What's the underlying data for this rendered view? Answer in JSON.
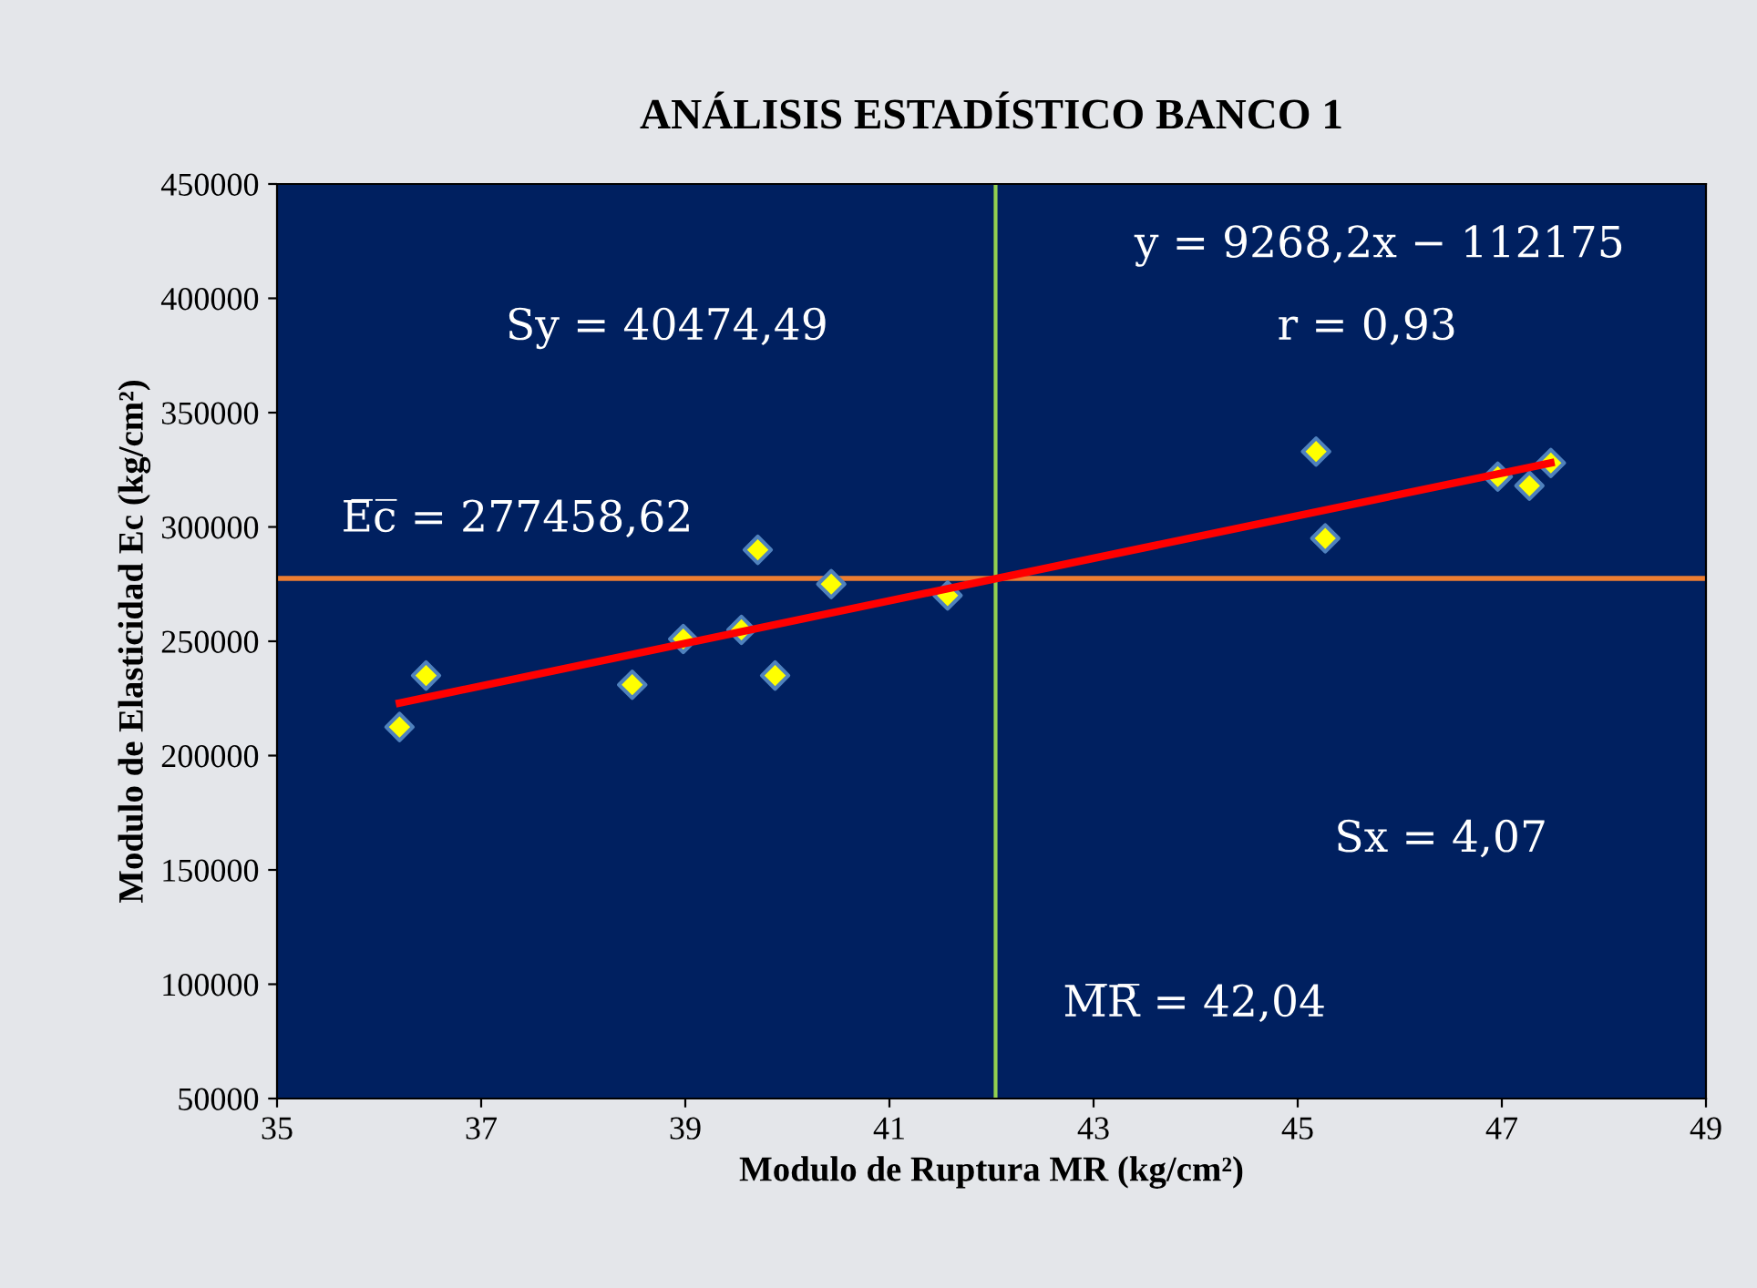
{
  "chart_data": {
    "type": "scatter",
    "title": "ANÁLISIS ESTADÍSTICO BANCO 1",
    "xlabel": "Modulo de Ruptura MR (kg/cm²)",
    "ylabel": "Modulo de Elasticidad Ec (kg/cm²)",
    "series": [
      {
        "color": "#ffff00",
        "marker": "diamond",
        "x": [
          36.2,
          36.46,
          38.48,
          38.98,
          39.55,
          39.71,
          39.88,
          40.43,
          41.57,
          45.18,
          45.27,
          46.96,
          47.27,
          47.48
        ],
        "values": [
          212500,
          235000,
          231000,
          251000,
          255000,
          290000,
          235000,
          275000,
          270000,
          333000,
          295000,
          322000,
          318000,
          328000
        ]
      },
      {
        "type": "line",
        "color": "#ff0000",
        "marker": "none",
        "x": [
          36.2,
          47.48
        ],
        "values": [
          223000,
          328000
        ]
      }
    ],
    "ref_lines": [
      {
        "axis": "y",
        "value": 277458.62,
        "color": "#ed7d31"
      },
      {
        "axis": "x",
        "value": 42.04,
        "color": "#92d050"
      }
    ],
    "annotations": [
      "y = 9268,2x − 112175",
      "r = 0,93",
      "Sy = 40474,49",
      "E̅c̅ = 277458,62",
      "Sx = 4,07",
      "M̅R̅ = 42,04"
    ],
    "xlim": [
      35,
      49
    ],
    "xticks": [
      35,
      37,
      39,
      41,
      43,
      45,
      47,
      49
    ],
    "ylim": [
      50000,
      450000
    ],
    "yticks": [
      50000,
      100000,
      150000,
      200000,
      250000,
      300000,
      350000,
      400000,
      450000
    ],
    "grid": false,
    "legend": false
  }
}
